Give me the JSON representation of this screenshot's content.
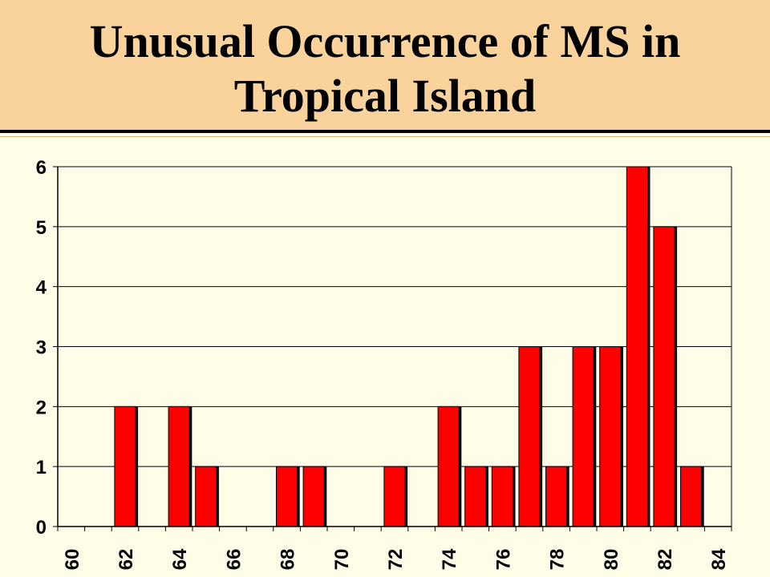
{
  "slide": {
    "title_line1": "Unusual Occurrence of MS in",
    "title_line2": "Tropical Island"
  },
  "chart_data": {
    "type": "bar",
    "title": "Unusual Occurrence of MS in Tropical Island",
    "xlabel": "",
    "ylabel": "",
    "categories": [
      "60",
      "61",
      "62",
      "63",
      "64",
      "65",
      "66",
      "67",
      "68",
      "69",
      "70",
      "71",
      "72",
      "73",
      "74",
      "75",
      "76",
      "77",
      "78",
      "79",
      "80",
      "81",
      "82",
      "83",
      "84"
    ],
    "values": [
      0,
      0,
      2,
      0,
      2,
      1,
      0,
      0,
      1,
      1,
      0,
      0,
      1,
      0,
      2,
      1,
      1,
      3,
      1,
      3,
      3,
      6,
      5,
      1,
      0
    ],
    "x_tick_labels": [
      "60",
      "62",
      "64",
      "66",
      "68",
      "70",
      "72",
      "74",
      "76",
      "78",
      "80",
      "82",
      "84"
    ],
    "y_tick_labels": [
      "0",
      "1",
      "2",
      "3",
      "4",
      "5",
      "6"
    ],
    "ylim": [
      0,
      6
    ],
    "grid": true,
    "bar_color": "#ff0000",
    "legend": "none"
  }
}
